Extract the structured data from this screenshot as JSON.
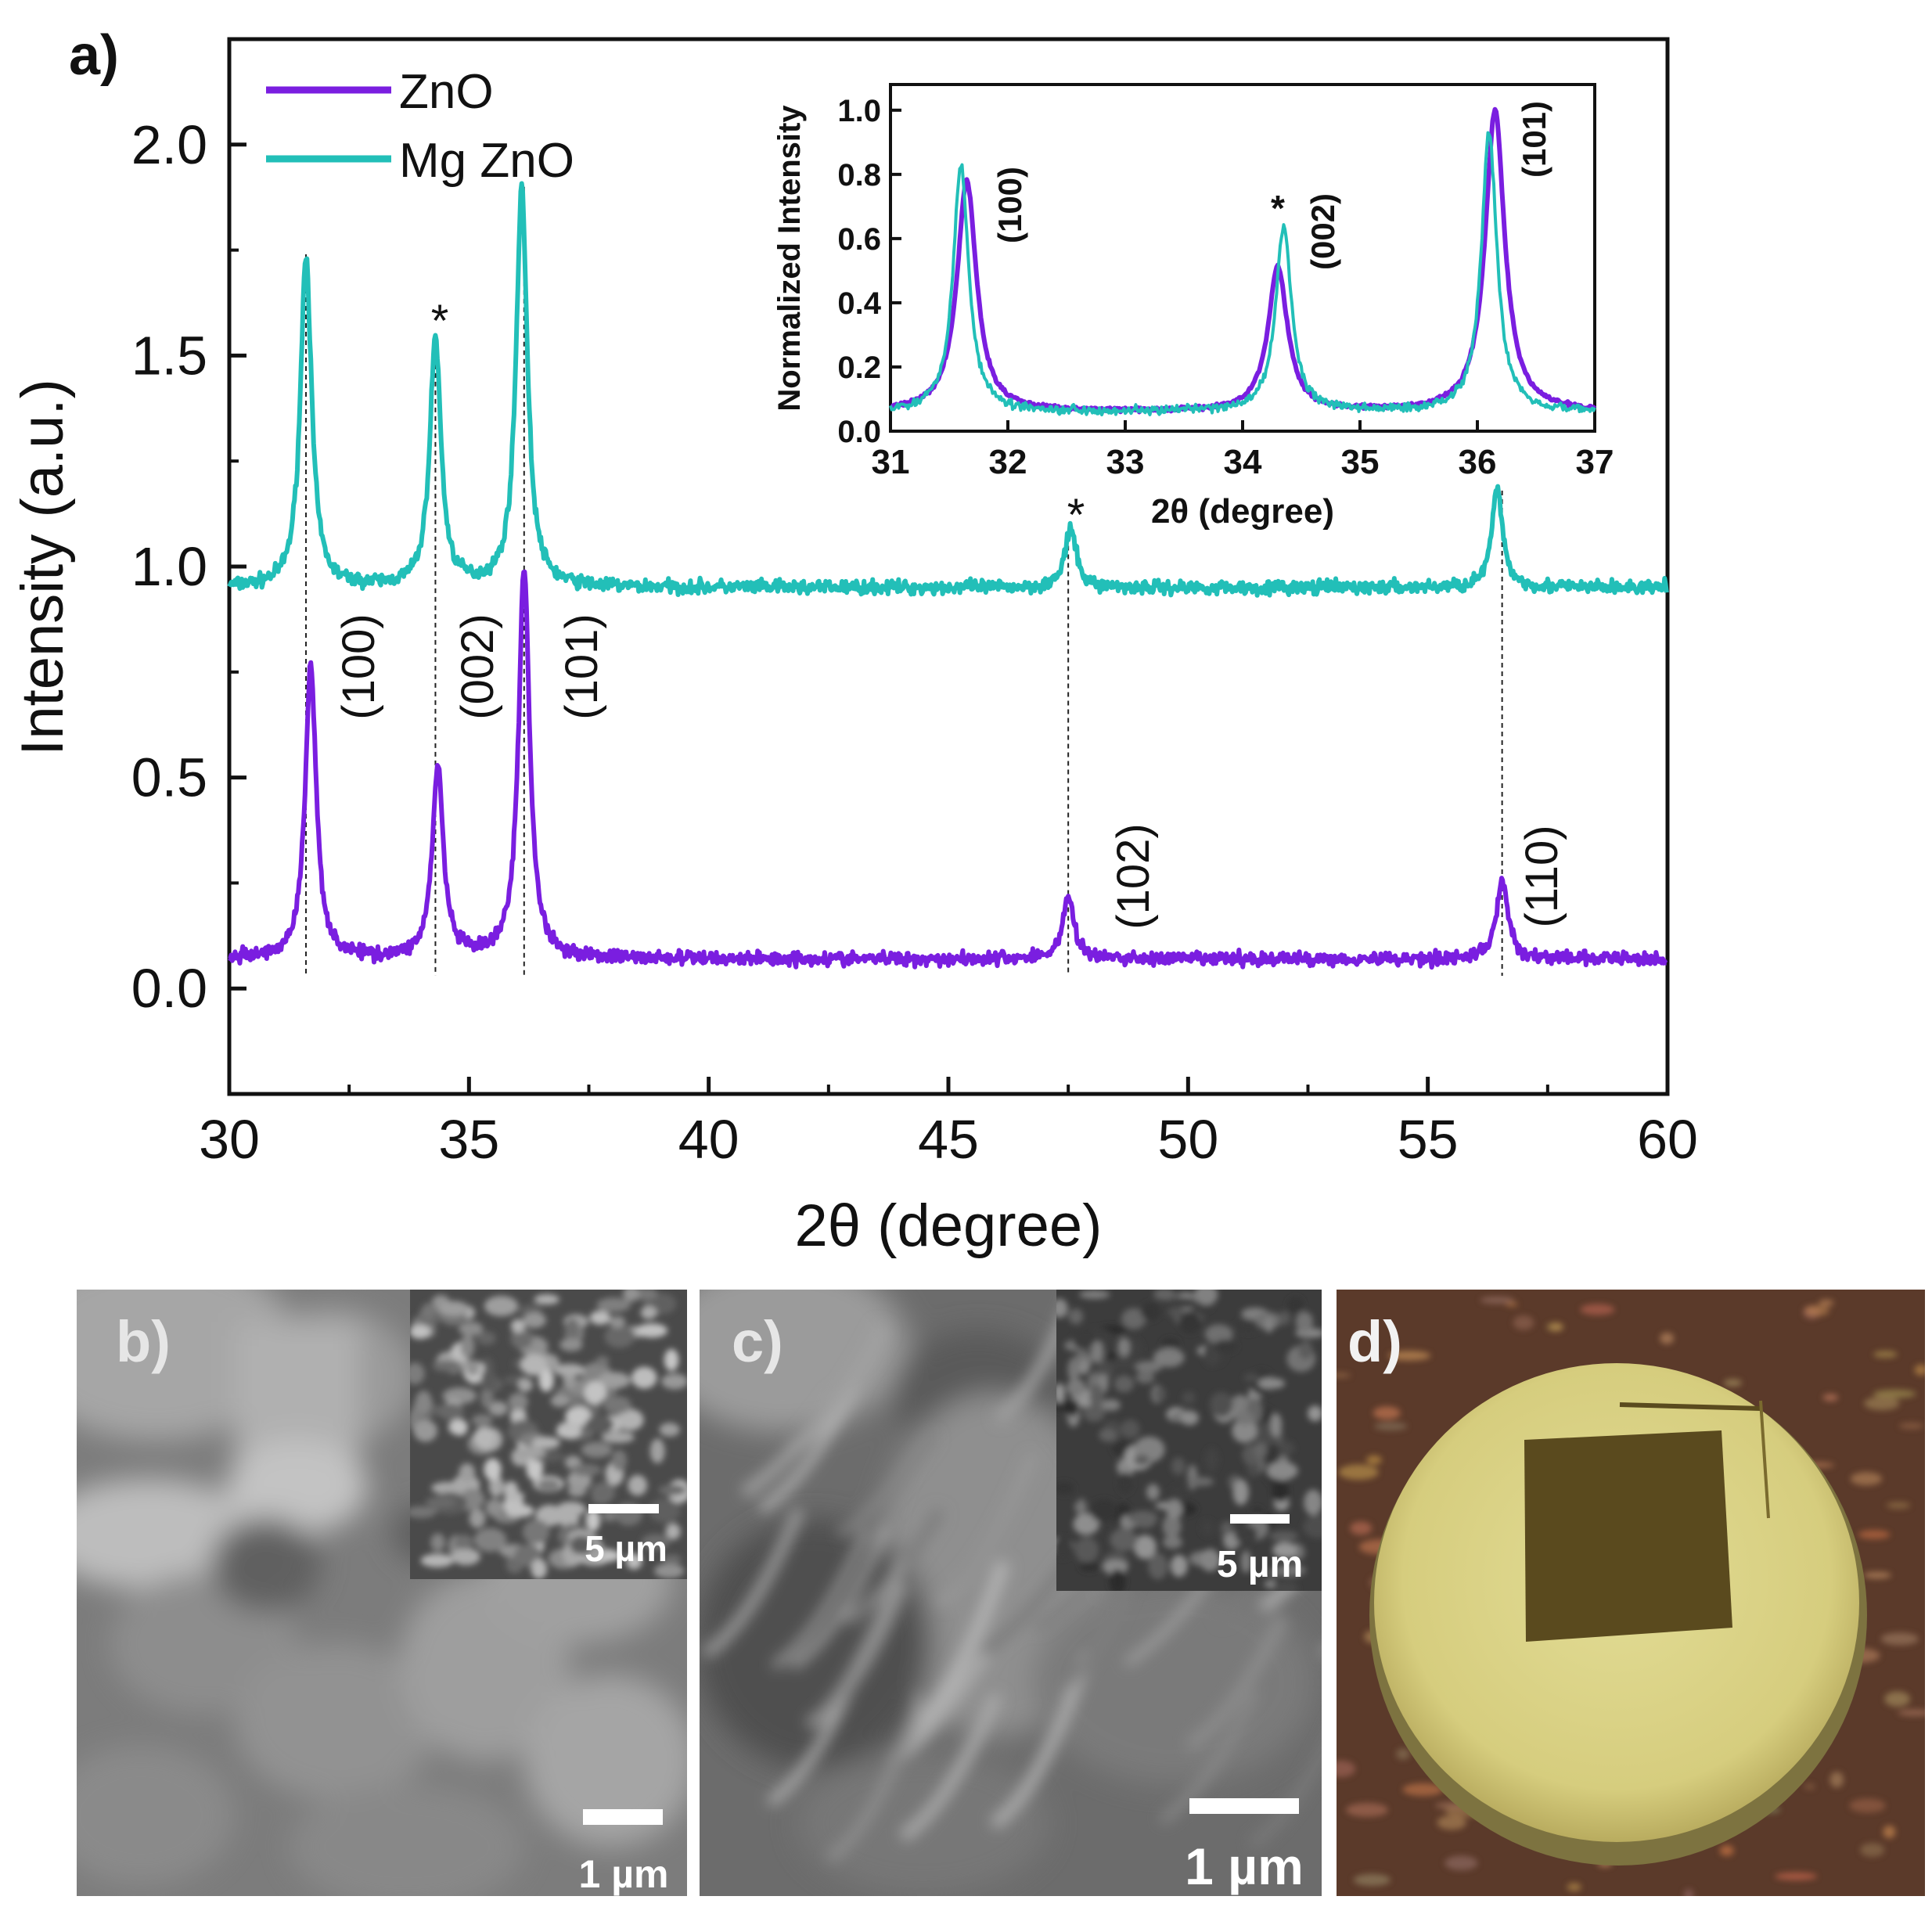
{
  "panel_labels": {
    "a": "a)",
    "b": "b)",
    "c": "c)",
    "d": "d)"
  },
  "colors": {
    "zno": "#7a1ee0",
    "mgzno": "#22bfb8",
    "sem_b": "#7a7a7a",
    "sem_c": "#6f6f6f",
    "photo_bg": "#5b3a2a",
    "disc": "#d9d28a",
    "square": "#5a4a1e"
  },
  "chart_data": [
    {
      "type": "line",
      "panel": "a)",
      "title": "",
      "xlabel": "2θ (degree)",
      "ylabel": "Intensity (a.u.)",
      "xlim": [
        30,
        60
      ],
      "ylim": [
        -0.25,
        2.25
      ],
      "x_ticks": [
        "30",
        "35",
        "40",
        "45",
        "50",
        "55",
        "60"
      ],
      "y_ticks": [
        "0.0",
        "0.5",
        "1.0",
        "1.5",
        "2.0"
      ],
      "legend_position": "top-left",
      "series": [
        {
          "name": "ZnO",
          "color": "#7a1ee0",
          "baseline": 0.07,
          "peaks": [
            {
              "x": 31.7,
              "height": 0.76
            },
            {
              "x": 34.35,
              "height": 0.52
            },
            {
              "x": 36.15,
              "height": 0.99
            },
            {
              "x": 47.5,
              "height": 0.22
            },
            {
              "x": 56.55,
              "height": 0.26
            }
          ]
        },
        {
          "name": "Mg ZnO",
          "color": "#22bfb8",
          "baseline": 0.95,
          "peaks": [
            {
              "x": 31.6,
              "height": 1.74
            },
            {
              "x": 34.3,
              "height": 1.54
            },
            {
              "x": 36.1,
              "height": 1.9
            },
            {
              "x": 47.55,
              "height": 1.09
            },
            {
              "x": 56.45,
              "height": 1.18
            }
          ]
        }
      ],
      "peak_labels": [
        "(100)",
        "(002)",
        "(101)",
        "(102)",
        "(110)"
      ],
      "star_marks": [
        "*",
        "*"
      ],
      "guide_lines_x": [
        31.6,
        34.3,
        36.15,
        47.5,
        56.55
      ]
    },
    {
      "type": "line",
      "panel": "inset",
      "title": "",
      "xlabel": "2θ (degree)",
      "ylabel": "Normalized Intensity",
      "xlim": [
        31,
        37
      ],
      "ylim": [
        0,
        1.08
      ],
      "x_ticks": [
        "31",
        "32",
        "33",
        "34",
        "35",
        "36",
        "37"
      ],
      "y_ticks": [
        "0.0",
        "0.2",
        "0.4",
        "0.6",
        "0.8",
        "1.0"
      ],
      "series": [
        {
          "name": "ZnO",
          "color": "#7a1ee0",
          "baseline": 0.06,
          "peaks": [
            {
              "x": 31.65,
              "height": 0.78
            },
            {
              "x": 34.3,
              "height": 0.51
            },
            {
              "x": 36.15,
              "height": 1.0
            }
          ]
        },
        {
          "name": "Mg ZnO",
          "color": "#22bfb8",
          "baseline": 0.06,
          "peaks": [
            {
              "x": 31.6,
              "height": 0.83
            },
            {
              "x": 34.35,
              "height": 0.64
            },
            {
              "x": 36.1,
              "height": 0.93
            }
          ]
        }
      ],
      "peak_labels": [
        "(100)",
        "(002)",
        "(101)"
      ],
      "star_marks": [
        "*"
      ]
    }
  ],
  "scale_bars": {
    "b_main": "1 µm",
    "b_inset": "5 µm",
    "c_main": "1 µm",
    "c_inset": "5 µm"
  }
}
